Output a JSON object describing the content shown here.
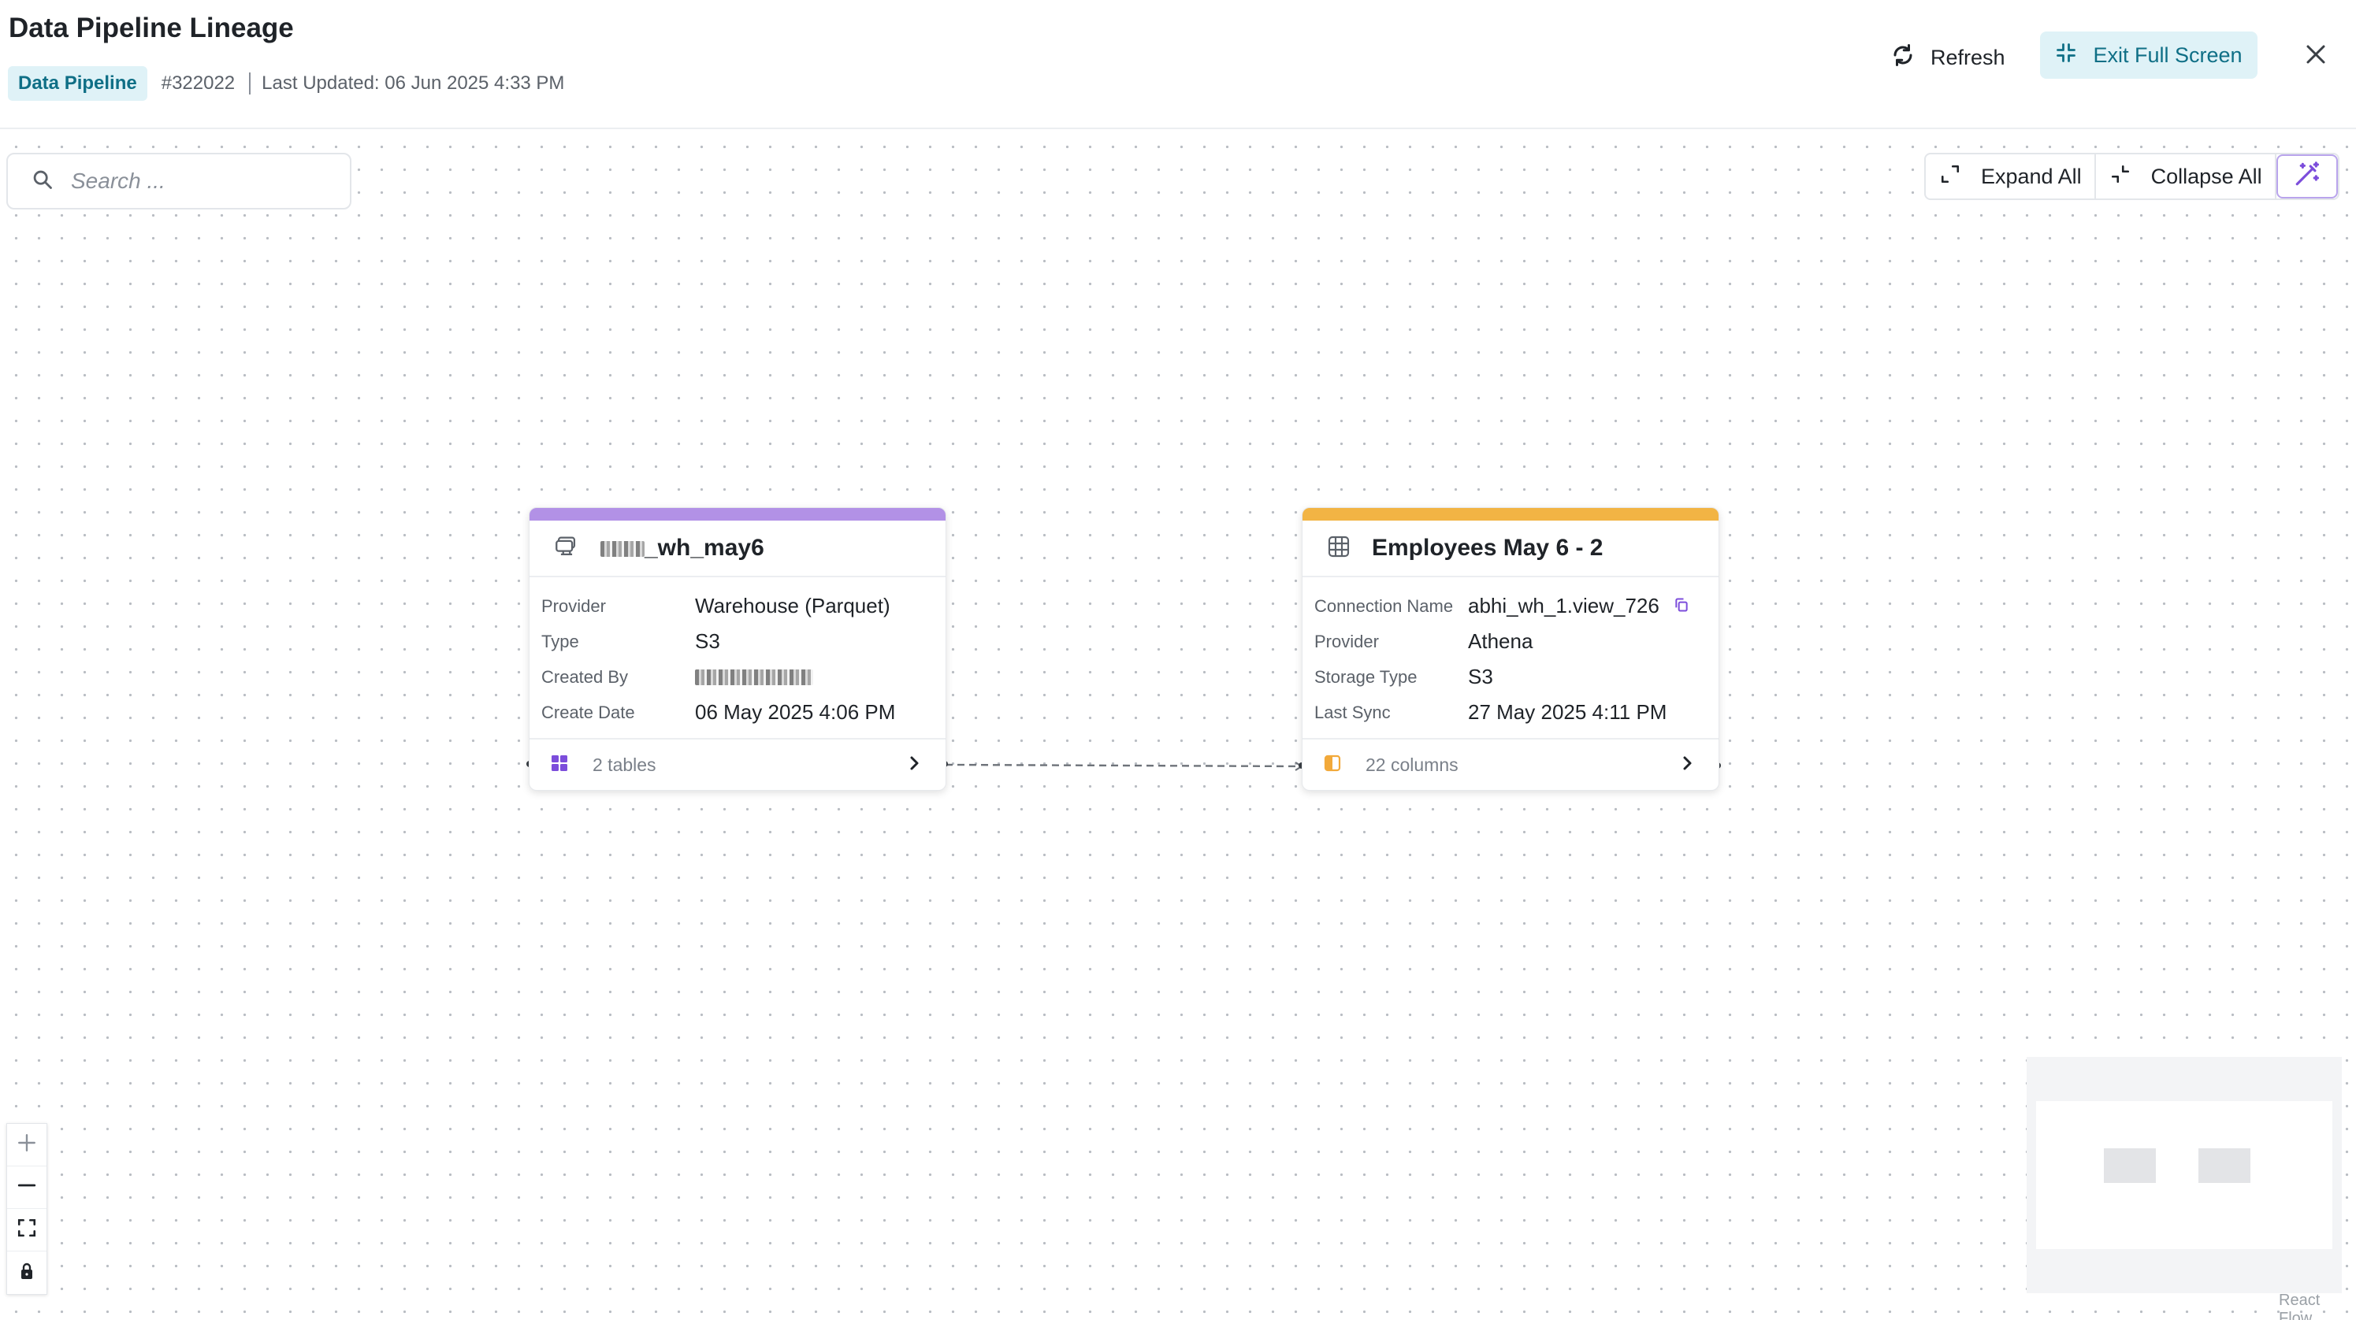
{
  "header": {
    "title": "Data Pipeline Lineage",
    "badge": "Data Pipeline",
    "id": "#322022",
    "last_updated": "Last Updated: 06 Jun 2025 4:33 PM",
    "refresh_label": "Refresh",
    "exit_fullscreen_label": "Exit Full Screen"
  },
  "search": {
    "placeholder": "Search ..."
  },
  "toolbar": {
    "expand_all": "Expand All",
    "collapse_all": "Collapse All"
  },
  "nodes": [
    {
      "title": "_wh_may6",
      "color": "#b291e6",
      "icon": "warehouse-icon",
      "rows": [
        {
          "label": "Provider",
          "value": "Warehouse (Parquet)"
        },
        {
          "label": "Type",
          "value": "S3"
        },
        {
          "label": "Created By",
          "value": ""
        },
        {
          "label": "Create Date",
          "value": "06 May 2025 4:06 PM"
        }
      ],
      "footer": "2 tables"
    },
    {
      "title": "Employees May 6 - 2",
      "color": "#f2b444",
      "icon": "table-icon",
      "rows": [
        {
          "label": "Connection Name",
          "value": "abhi_wh_1.view_726"
        },
        {
          "label": "Provider",
          "value": "Athena"
        },
        {
          "label": "Storage Type",
          "value": "S3"
        },
        {
          "label": "Last Sync",
          "value": "27 May 2025 4:11 PM"
        }
      ],
      "footer": "22 columns"
    }
  ],
  "attribution": "React Flow"
}
